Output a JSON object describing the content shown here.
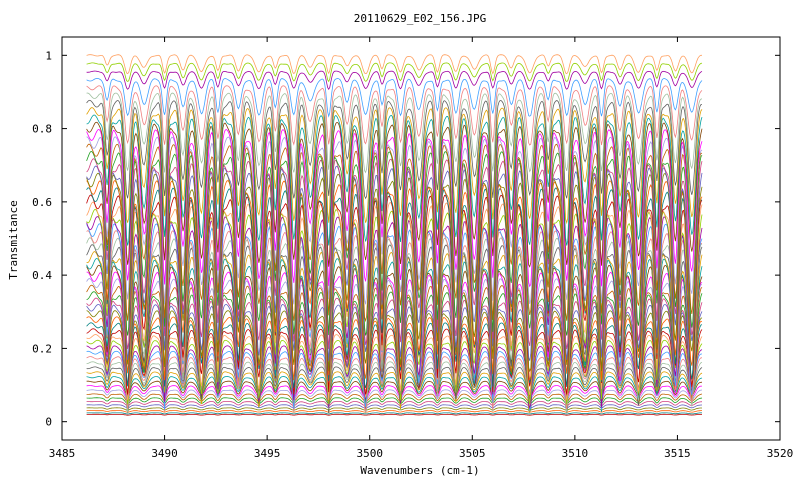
{
  "chart_data": {
    "type": "line",
    "title": "20110629_E02_156.JPG",
    "xlabel": "Wavenumbers (cm-1)",
    "ylabel": "Transmitance",
    "xlim": [
      3485,
      3520
    ],
    "ylim": [
      -0.05,
      1.05
    ],
    "x_ticks": [
      "3485",
      "3490",
      "3495",
      "3500",
      "3505",
      "3510",
      "3515",
      "3520"
    ],
    "y_ticks": [
      "0",
      "0.2",
      "0.4",
      "0.6",
      "0.8",
      "1"
    ],
    "grid": false,
    "legend": "none",
    "x_range_data": [
      3486.2,
      3516.2
    ],
    "series_count": 60,
    "absorption_line_centers": [
      3487.2,
      3488.2,
      3489.0,
      3490.0,
      3490.9,
      3491.8,
      3492.6,
      3493.6,
      3494.6,
      3495.4,
      3496.3,
      3497.1,
      3498.0,
      3498.9,
      3499.8,
      3500.6,
      3501.5,
      3502.4,
      3503.3,
      3504.2,
      3505.1,
      3506.0,
      3506.9,
      3507.8,
      3508.7,
      3509.6,
      3510.5,
      3511.3,
      3512.2,
      3513.1,
      3514.0,
      3514.9,
      3515.7
    ],
    "series_max_transmittance_range": [
      0.02,
      1.0
    ],
    "colors": [
      "#c00000",
      "#008080",
      "#ff6000",
      "#808000",
      "#6060c0",
      "#d04080",
      "#20a020",
      "#c06000",
      "#a0a0e0",
      "#ff00ff",
      "#804000",
      "#00a0a0",
      "#e0a000",
      "#606060",
      "#a0c0a0",
      "#f08080",
      "#40a0ff",
      "#a000a0",
      "#90d000",
      "#ffa060"
    ]
  }
}
